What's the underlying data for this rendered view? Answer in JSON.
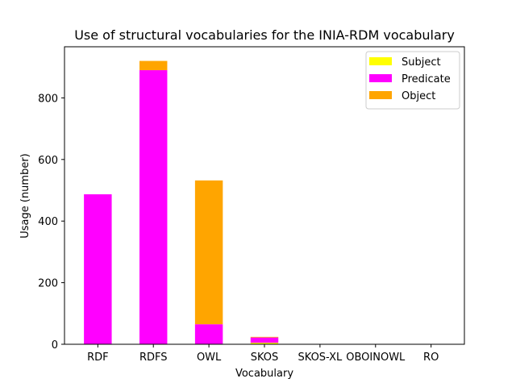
{
  "chart_data": {
    "type": "bar",
    "stacked": true,
    "title": "Use of structural vocabularies for the INIA-RDM vocabulary",
    "xlabel": "Vocabulary",
    "ylabel": "Usage (number)",
    "categories": [
      "RDF",
      "RDFS",
      "OWL",
      "SKOS",
      "SKOS-XL",
      "OBOINOWL",
      "RO"
    ],
    "ylim": [
      0,
      966
    ],
    "yticks": [
      0,
      200,
      400,
      600,
      800
    ],
    "series": [
      {
        "name": "Subject",
        "color": "#ffff00",
        "values": [
          0,
          0,
          0,
          5,
          0,
          0,
          0
        ]
      },
      {
        "name": "Predicate",
        "color": "#ff00ff",
        "values": [
          487,
          890,
          65,
          17,
          0,
          0,
          0
        ]
      },
      {
        "name": "Object",
        "color": "#ffa500",
        "values": [
          0,
          30,
          467,
          2,
          0,
          0,
          0
        ]
      }
    ],
    "legend": "top-right",
    "grid": false
  }
}
